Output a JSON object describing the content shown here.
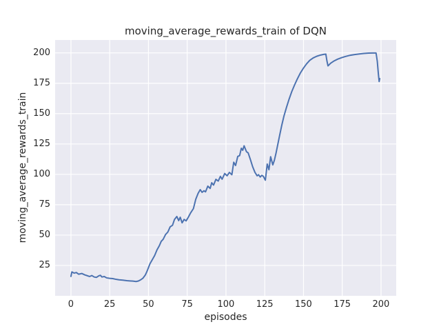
{
  "figure": {
    "background": "#ffffff",
    "plot_background": "#eaeaf2",
    "grid_color": "#ffffff",
    "text_color": "#262626"
  },
  "chart_data": {
    "type": "line",
    "title": "moving_average_rewards_train of DQN",
    "xlabel": "episodes",
    "ylabel": "moving_average_rewards_train",
    "x_ticks": [
      0,
      25,
      50,
      75,
      100,
      125,
      150,
      175,
      200
    ],
    "y_ticks": [
      25,
      50,
      75,
      100,
      125,
      150,
      175,
      200
    ],
    "xlim": [
      -10.2,
      209.8
    ],
    "ylim": [
      0,
      210.6
    ],
    "grid": true,
    "legend": "none",
    "series": [
      {
        "name": "moving_average_rewards_train of DQN",
        "color": "#4c72b0",
        "line_width": 2,
        "points": [
          [
            0,
            16.0
          ],
          [
            0.6,
            19.7
          ],
          [
            2,
            18.7
          ],
          [
            3.5,
            19.2
          ],
          [
            5,
            17.8
          ],
          [
            7,
            18.4
          ],
          [
            9,
            17.2
          ],
          [
            10.5,
            16.6
          ],
          [
            12,
            15.9
          ],
          [
            13.5,
            16.7
          ],
          [
            15,
            15.5
          ],
          [
            16.5,
            15.2
          ],
          [
            18,
            16.5
          ],
          [
            19,
            16.9
          ],
          [
            20,
            15.5
          ],
          [
            21.5,
            15.9
          ],
          [
            23,
            14.8
          ],
          [
            25,
            14.4
          ],
          [
            27,
            14.2
          ],
          [
            29,
            13.6
          ],
          [
            31,
            13.2
          ],
          [
            33.5,
            12.9
          ],
          [
            36,
            12.5
          ],
          [
            38,
            12.3
          ],
          [
            40,
            12.1
          ],
          [
            42,
            11.8
          ],
          [
            43.5,
            12.2
          ],
          [
            45,
            13.2
          ],
          [
            46.5,
            14.6
          ],
          [
            48,
            17.2
          ],
          [
            49,
            20.0
          ],
          [
            50,
            23.2
          ],
          [
            51,
            26.5
          ],
          [
            52.5,
            29.8
          ],
          [
            54,
            33.2
          ],
          [
            55.5,
            37.8
          ],
          [
            57,
            41.2
          ],
          [
            58.2,
            44.8
          ],
          [
            59.5,
            46.6
          ],
          [
            61,
            50.4
          ],
          [
            62.5,
            52.5
          ],
          [
            64,
            56.8
          ],
          [
            65.5,
            58.1
          ],
          [
            66.8,
            62.9
          ],
          [
            68.3,
            65.3
          ],
          [
            69.5,
            61.9
          ],
          [
            70.5,
            64.7
          ],
          [
            71.7,
            60.1
          ],
          [
            73,
            62.9
          ],
          [
            74.3,
            61.7
          ],
          [
            75.7,
            64.7
          ],
          [
            77.2,
            68.3
          ],
          [
            79,
            71.8
          ],
          [
            80.5,
            79.5
          ],
          [
            82,
            84.3
          ],
          [
            83.4,
            87.4
          ],
          [
            84.6,
            85.2
          ],
          [
            85.8,
            86.5
          ],
          [
            86.8,
            85.6
          ],
          [
            88.3,
            90.3
          ],
          [
            89.8,
            88.4
          ],
          [
            90.8,
            93.1
          ],
          [
            92,
            91.2
          ],
          [
            93.5,
            95.9
          ],
          [
            95,
            94.5
          ],
          [
            96.4,
            98.3
          ],
          [
            97.5,
            96.0
          ],
          [
            99.2,
            100.7
          ],
          [
            100.7,
            98.8
          ],
          [
            102.2,
            101.6
          ],
          [
            103.8,
            99.7
          ],
          [
            105,
            110.0
          ],
          [
            106.2,
            107.3
          ],
          [
            107.6,
            114.8
          ],
          [
            108.8,
            115.4
          ],
          [
            109.9,
            121.5
          ],
          [
            110.8,
            119.8
          ],
          [
            111.7,
            123.5
          ],
          [
            113.2,
            118.7
          ],
          [
            114.3,
            117.7
          ],
          [
            115.8,
            112.0
          ],
          [
            117.2,
            106.3
          ],
          [
            118.7,
            101.6
          ],
          [
            120.1,
            98.8
          ],
          [
            121,
            99.7
          ],
          [
            122.1,
            97.8
          ],
          [
            123.1,
            99.2
          ],
          [
            124.1,
            98.4
          ],
          [
            125.4,
            95.2
          ],
          [
            126.6,
            108.5
          ],
          [
            127.7,
            103.8
          ],
          [
            128.8,
            114.5
          ],
          [
            130.2,
            107.8
          ],
          [
            131.2,
            111.5
          ],
          [
            132.2,
            117.0
          ],
          [
            133.4,
            124.5
          ],
          [
            134.6,
            132.0
          ],
          [
            136,
            140.5
          ],
          [
            137.4,
            148.0
          ],
          [
            139,
            155.0
          ],
          [
            140.6,
            161.5
          ],
          [
            142.4,
            168.0
          ],
          [
            144.2,
            173.5
          ],
          [
            146,
            178.5
          ],
          [
            148,
            183.5
          ],
          [
            150,
            187.5
          ],
          [
            152,
            191.0
          ],
          [
            154,
            193.8
          ],
          [
            156.2,
            195.8
          ],
          [
            158.5,
            197.2
          ],
          [
            161,
            198.2
          ],
          [
            163.2,
            198.8
          ],
          [
            164.4,
            199.0
          ],
          [
            165.1,
            193.5
          ],
          [
            165.8,
            189.3
          ],
          [
            167.5,
            191.5
          ],
          [
            169.5,
            193.2
          ],
          [
            172,
            194.8
          ],
          [
            174.5,
            196.0
          ],
          [
            177,
            197.0
          ],
          [
            180,
            198.0
          ],
          [
            183,
            198.6
          ],
          [
            186,
            199.1
          ],
          [
            189,
            199.5
          ],
          [
            192,
            199.8
          ],
          [
            194.5,
            199.9
          ],
          [
            196.8,
            199.9
          ],
          [
            197.6,
            193.0
          ],
          [
            198.3,
            182.5
          ],
          [
            198.8,
            176.4
          ],
          [
            199.2,
            178.8
          ]
        ]
      }
    ]
  }
}
